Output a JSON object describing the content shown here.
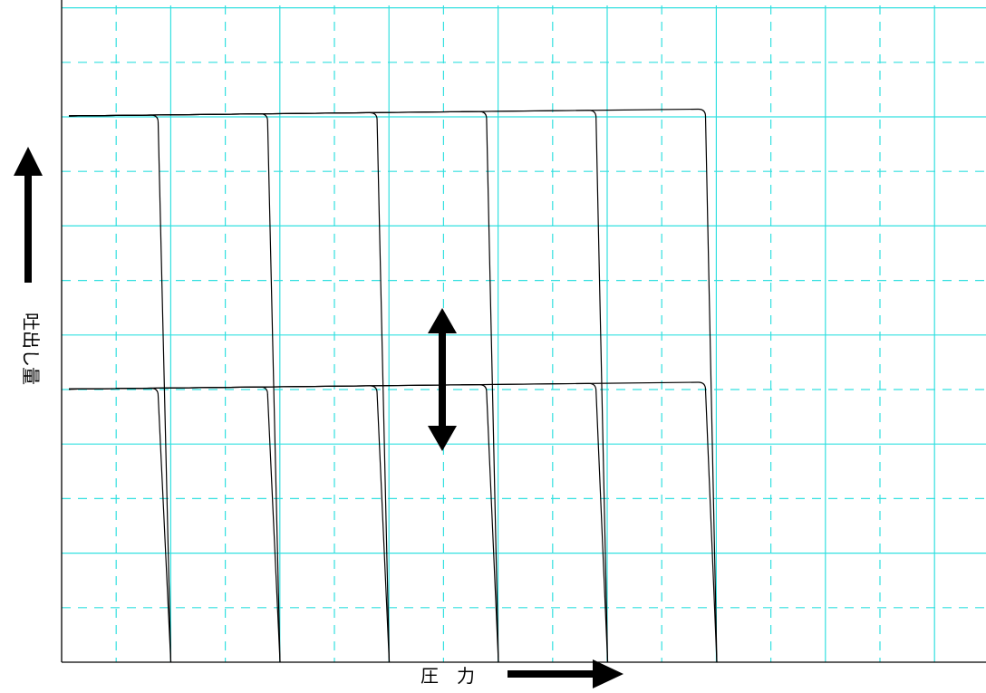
{
  "chart_data": {
    "type": "line",
    "title": "",
    "xlabel": "圧　力",
    "ylabel": "吐出し量",
    "grid": true,
    "legend": "none",
    "colors": {
      "grid": "#33e0e0",
      "line": "#000000",
      "arrow": "#000000"
    },
    "annotations": [
      {
        "type": "double-arrow",
        "direction": "vertical",
        "meaning": "adjustable"
      }
    ],
    "series_groups": [
      {
        "level": 1.0,
        "cutoff_x": [
          1,
          2,
          3,
          4,
          5,
          6
        ]
      },
      {
        "level": 0.5,
        "cutoff_x": [
          1,
          2,
          3,
          4,
          5,
          6
        ]
      }
    ]
  }
}
